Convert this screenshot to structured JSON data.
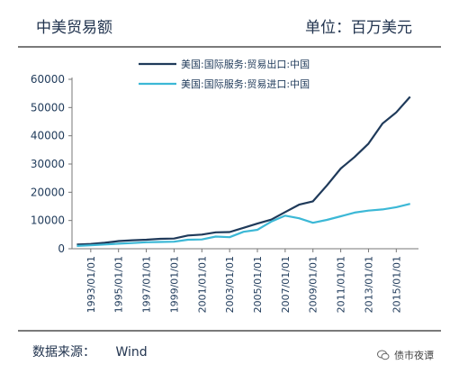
{
  "header": {
    "title": "中美贸易额",
    "unit": "单位：百万美元"
  },
  "footer": {
    "source_label": "数据来源：",
    "source_value": "Wind",
    "watermark": "债市夜谭"
  },
  "colors": {
    "export": "#1f3a5a",
    "import": "#3cb8d6"
  },
  "chart_data": {
    "type": "line",
    "title": "",
    "xlabel": "",
    "ylabel": "",
    "ylim": [
      0,
      60000
    ],
    "yticks": [
      "0",
      "10000",
      "20000",
      "30000",
      "40000",
      "50000",
      "60000"
    ],
    "xticks": [
      "1993/01/01",
      "1995/01/01",
      "1997/01/01",
      "1999/01/01",
      "2001/01/01",
      "2003/01/01",
      "2005/01/01",
      "2007/01/01",
      "2009/01/01",
      "2011/01/01",
      "2013/01/01",
      "2015/01/01"
    ],
    "x": [
      "1992",
      "1993",
      "1994",
      "1995",
      "1996",
      "1997",
      "1998",
      "1999",
      "2000",
      "2001",
      "2002",
      "2003",
      "2004",
      "2005",
      "2006",
      "2007",
      "2008",
      "2009",
      "2010",
      "2011",
      "2012",
      "2013",
      "2014",
      "2015",
      "2016"
    ],
    "series": [
      {
        "name": "美国:国际服务:贸易出口:中国",
        "values": [
          1500,
          1700,
          2100,
          2700,
          3000,
          3200,
          3500,
          3600,
          4700,
          5000,
          5800,
          5900,
          7400,
          8900,
          10300,
          13000,
          15600,
          16800,
          22400,
          28400,
          32500,
          37200,
          44300,
          48300,
          53800
        ]
      },
      {
        "name": "美国:国际服务:贸易进口:中国",
        "values": [
          1000,
          1200,
          1500,
          1800,
          2000,
          2300,
          2400,
          2500,
          3200,
          3300,
          4300,
          4100,
          6000,
          6700,
          9600,
          11700,
          10800,
          9200,
          10200,
          11500,
          12800,
          13500,
          13900,
          14700,
          15900
        ]
      }
    ],
    "legend_position": "top-center",
    "grid": false
  }
}
